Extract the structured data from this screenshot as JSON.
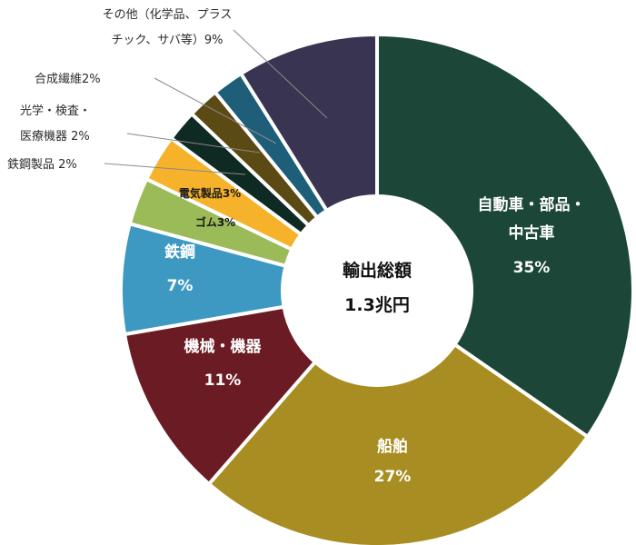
{
  "chart_data": {
    "type": "pie",
    "style": "donut",
    "center": {
      "line1": "輸出総額",
      "line2": "1.3兆円"
    },
    "slices": [
      {
        "name": "自動車・部品・中古車",
        "value": 35,
        "color": "#1b4638",
        "label_lines": [
          "自動車・部品・",
          "中古車",
          "35%"
        ]
      },
      {
        "name": "船舶",
        "value": 27,
        "color": "#a88d22",
        "label_lines": [
          "船舶",
          "27%"
        ]
      },
      {
        "name": "機械・機器",
        "value": 11,
        "color": "#6b1b23",
        "label_lines": [
          "機械・機器",
          "11%"
        ]
      },
      {
        "name": "鉄鋼",
        "value": 7,
        "color": "#3d99c2",
        "label_lines": [
          "鉄鋼",
          "7%"
        ]
      },
      {
        "name": "ゴム",
        "value": 3,
        "color": "#9bbb59",
        "label_lines": [
          "ゴム3%"
        ]
      },
      {
        "name": "電気製品",
        "value": 3,
        "color": "#f6b22a",
        "label_lines": [
          "電気製品3%"
        ]
      },
      {
        "name": "鉄鋼製品",
        "value": 2,
        "color": "#0f2a22",
        "label_lines": [
          "鉄鋼製品 2%"
        ]
      },
      {
        "name": "光学・検査・医療機器",
        "value": 2,
        "color": "#5b4a14",
        "label_lines": [
          "光学・検査・",
          "医療機器 2%"
        ]
      },
      {
        "name": "合成繊維",
        "value": 2,
        "color": "#1e5e78",
        "label_lines": [
          "合成繊維2%"
        ]
      },
      {
        "name": "その他（化学品、プラスチック、サバ等）",
        "value": 9,
        "color": "#383451",
        "label_lines": [
          "その他（化学品、プラス",
          "チック、サバ等）9%"
        ]
      }
    ]
  }
}
